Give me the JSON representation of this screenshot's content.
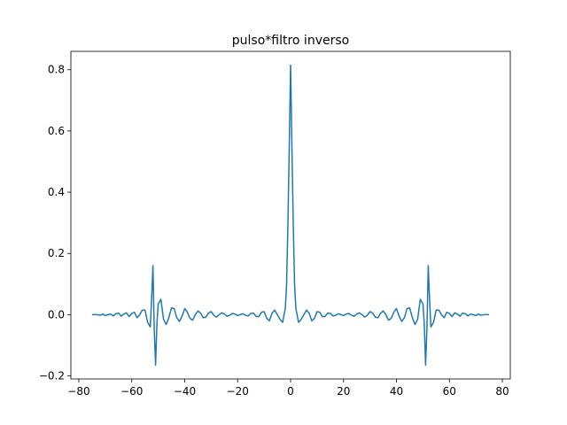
{
  "chart_data": {
    "type": "line",
    "title": "pulso*filtro inverso",
    "xlabel": "",
    "ylabel": "",
    "xlim": [
      -83,
      83
    ],
    "ylim": [
      -0.21,
      0.86
    ],
    "xticks": [
      -80,
      -60,
      -40,
      -20,
      0,
      20,
      40,
      60,
      80
    ],
    "yticks": [
      -0.2,
      0.0,
      0.2,
      0.4,
      0.6,
      0.8
    ],
    "xtick_labels": [
      "−80",
      "−60",
      "−40",
      "−20",
      "0",
      "20",
      "40",
      "60",
      "80"
    ],
    "ytick_labels": [
      "−0.2",
      "0.0",
      "0.2",
      "0.4",
      "0.6",
      "0.8"
    ],
    "grid": false,
    "legend": "none",
    "line_color": "#1f77b4",
    "series": [
      {
        "x": [
          -75,
          -74,
          -73,
          -72,
          -71,
          -70,
          -69,
          -68,
          -67,
          -66,
          -65,
          -64,
          -63,
          -62,
          -61,
          -60,
          -59,
          -58,
          -57,
          -56,
          -55,
          -54,
          -53,
          -52.5,
          -52,
          -51.5,
          -51,
          -50.5,
          -50,
          -49,
          -48,
          -47,
          -46,
          -45,
          -44,
          -43,
          -42,
          -41,
          -40,
          -39,
          -38,
          -37,
          -36,
          -35,
          -34,
          -33,
          -32,
          -31,
          -30,
          -29,
          -28,
          -27,
          -26,
          -25,
          -24,
          -23,
          -22,
          -21,
          -20,
          -19,
          -18,
          -17,
          -16,
          -15,
          -14,
          -13,
          -12,
          -11,
          -10,
          -9,
          -8,
          -7,
          -6,
          -5,
          -4,
          -3,
          -2,
          -1.5,
          -1,
          -0.5,
          0,
          0.5,
          1,
          1.5,
          2,
          3,
          4,
          5,
          6,
          7,
          8,
          9,
          10,
          11,
          12,
          13,
          14,
          15,
          16,
          17,
          18,
          19,
          20,
          21,
          22,
          23,
          24,
          25,
          26,
          27,
          28,
          29,
          30,
          31,
          32,
          33,
          34,
          35,
          36,
          37,
          38,
          39,
          40,
          41,
          42,
          43,
          44,
          45,
          46,
          47,
          48,
          49,
          50,
          50.5,
          51,
          51.5,
          52,
          52.5,
          53,
          54,
          55,
          56,
          57,
          58,
          59,
          60,
          61,
          62,
          63,
          64,
          65,
          66,
          67,
          68,
          69,
          70,
          71,
          72,
          73,
          74,
          75
        ],
        "y": [
          0.0,
          0.0,
          0.0,
          -0.002,
          0.002,
          -0.003,
          0.0,
          0.002,
          -0.004,
          0.003,
          0.005,
          -0.005,
          0.002,
          0.006,
          -0.006,
          0.004,
          0.008,
          -0.01,
          0.0,
          0.015,
          0.015,
          -0.025,
          -0.04,
          0.05,
          0.16,
          -0.05,
          -0.165,
          -0.03,
          0.035,
          0.05,
          -0.015,
          -0.032,
          -0.01,
          0.022,
          0.02,
          -0.01,
          -0.022,
          -0.005,
          0.02,
          0.008,
          -0.012,
          -0.018,
          0.0,
          0.012,
          0.005,
          -0.01,
          -0.008,
          0.005,
          0.01,
          -0.002,
          -0.008,
          0.0,
          0.006,
          0.002,
          -0.005,
          -0.002,
          0.004,
          0.002,
          -0.003,
          0.0,
          0.003,
          -0.002,
          -0.004,
          0.004,
          0.005,
          -0.006,
          -0.006,
          0.008,
          0.01,
          -0.012,
          -0.02,
          0.005,
          0.015,
          0.0,
          -0.015,
          -0.025,
          0.02,
          0.1,
          0.3,
          0.55,
          0.815,
          0.55,
          0.3,
          0.1,
          0.02,
          -0.025,
          -0.015,
          0.0,
          0.015,
          0.005,
          -0.02,
          -0.012,
          0.01,
          0.008,
          -0.006,
          -0.006,
          0.005,
          0.004,
          -0.004,
          -0.002,
          0.003,
          0.0,
          -0.003,
          0.002,
          0.004,
          -0.002,
          -0.005,
          0.002,
          0.006,
          0.0,
          -0.008,
          -0.002,
          0.01,
          0.005,
          -0.008,
          -0.01,
          0.005,
          0.012,
          0.0,
          -0.018,
          -0.012,
          0.008,
          0.02,
          -0.005,
          -0.022,
          -0.01,
          0.02,
          0.022,
          -0.01,
          -0.032,
          -0.015,
          0.05,
          0.035,
          -0.03,
          -0.165,
          -0.05,
          0.16,
          0.05,
          -0.04,
          -0.025,
          0.015,
          0.015,
          0.0,
          -0.01,
          0.008,
          0.004,
          -0.006,
          0.006,
          0.002,
          -0.005,
          0.005,
          0.003,
          -0.004,
          0.002,
          0.0,
          -0.003,
          0.002,
          -0.002,
          0.0,
          0.0,
          0.0
        ]
      }
    ]
  }
}
